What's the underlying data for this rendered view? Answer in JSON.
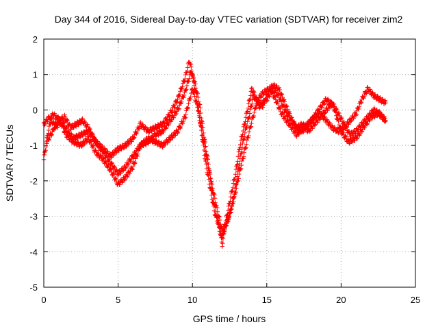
{
  "chart_data": {
    "type": "scatter",
    "title": "Day 344 of 2016, Sidereal Day-to-day VTEC variation (SDTVAR) for receiver zim2",
    "xlabel": "GPS time / hours",
    "ylabel": "SDTVAR / TECUs",
    "xlim": [
      0,
      25
    ],
    "ylim": [
      -5,
      2
    ],
    "xticks": [
      0,
      5,
      10,
      15,
      20,
      25
    ],
    "yticks": [
      -5,
      -4,
      -3,
      -2,
      -1,
      0,
      1,
      2
    ],
    "xtick_labels": [
      "0",
      "5",
      "10",
      "15",
      "20",
      "25"
    ],
    "ytick_labels": [
      "-5",
      "-4",
      "-3",
      "-2",
      "-1",
      "0",
      "1",
      "2"
    ],
    "grid": true,
    "legend": "none",
    "marker": "+",
    "color": "#ff0000",
    "series": [
      {
        "x": [
          0.0,
          0.3,
          0.6,
          1.0,
          1.4,
          1.8,
          2.2,
          2.6,
          3.0,
          3.5,
          4.0,
          4.5,
          5.0,
          5.5,
          6.0,
          6.5,
          7.0,
          7.5,
          8.0,
          8.5,
          9.0,
          9.5,
          9.8,
          10.0,
          10.3,
          10.6,
          10.9,
          11.2,
          11.5,
          11.8,
          12.0,
          12.3,
          12.6,
          12.9,
          13.2,
          13.5,
          13.8,
          14.0,
          14.3,
          14.7,
          15.0,
          15.4,
          15.8,
          16.2,
          16.6,
          17.0,
          17.4,
          17.8,
          18.2,
          18.6,
          19.0,
          19.4,
          19.8,
          20.2,
          20.6,
          21.0,
          21.4,
          21.8,
          22.2,
          22.6,
          23.0
        ],
        "y": [
          -1.4,
          -0.6,
          -0.1,
          -0.3,
          -0.2,
          -0.5,
          -0.4,
          -0.3,
          -0.5,
          -0.9,
          -1.1,
          -1.3,
          -1.1,
          -1.0,
          -0.8,
          -0.4,
          -0.6,
          -0.5,
          -0.4,
          -0.1,
          0.3,
          0.9,
          1.4,
          1.0,
          0.3,
          -0.6,
          -1.5,
          -2.2,
          -2.9,
          -3.3,
          -3.8,
          -3.0,
          -2.4,
          -1.8,
          -1.0,
          -0.4,
          0.2,
          0.6,
          0.3,
          0.1,
          0.4,
          0.7,
          0.6,
          0.2,
          -0.2,
          -0.5,
          -0.6,
          -0.4,
          -0.2,
          -0.1,
          -0.3,
          -0.5,
          -0.6,
          -0.5,
          -0.3,
          -0.1,
          0.3,
          0.6,
          0.4,
          0.3,
          0.2
        ]
      },
      {
        "x": [
          0.0,
          0.4,
          0.8,
          1.2,
          1.6,
          2.0,
          2.5,
          3.0,
          3.5,
          4.0,
          4.5,
          5.0,
          5.5,
          6.0,
          6.5,
          7.0,
          7.5,
          8.0,
          8.5,
          9.0,
          9.5,
          9.9,
          10.2,
          10.5,
          10.8,
          11.1,
          11.4,
          11.7,
          12.0,
          12.3,
          12.6,
          12.9,
          13.2,
          13.5,
          13.8,
          14.1,
          14.5,
          15.0,
          15.4,
          15.8,
          16.2,
          16.6,
          17.0,
          17.4,
          17.8,
          18.2,
          18.6,
          19.0,
          19.4,
          19.8,
          20.2,
          20.6,
          21.0,
          21.4,
          21.8,
          22.2,
          22.6,
          23.0
        ],
        "y": [
          -0.4,
          -0.2,
          -0.5,
          -0.3,
          -0.6,
          -0.8,
          -0.7,
          -0.6,
          -0.9,
          -1.2,
          -1.5,
          -1.8,
          -1.6,
          -1.3,
          -1.0,
          -0.9,
          -0.7,
          -0.6,
          -0.3,
          0.0,
          0.5,
          1.1,
          0.7,
          0.1,
          -0.8,
          -1.6,
          -2.5,
          -3.1,
          -3.6,
          -3.2,
          -2.8,
          -2.2,
          -1.4,
          -0.7,
          -0.2,
          0.4,
          0.1,
          0.3,
          0.6,
          0.4,
          0.0,
          -0.3,
          -0.5,
          -0.4,
          -0.6,
          -0.4,
          -0.2,
          0.0,
          0.2,
          -0.1,
          -0.4,
          -0.7,
          -0.6,
          -0.4,
          -0.2,
          0.0,
          -0.1,
          -0.3
        ]
      },
      {
        "x": [
          0.2,
          0.6,
          1.0,
          1.5,
          2.0,
          2.5,
          3.0,
          3.5,
          4.0,
          4.5,
          5.0,
          5.5,
          6.0,
          6.5,
          7.0,
          7.5,
          8.0,
          8.5,
          9.0,
          9.5,
          10.0,
          10.4,
          10.8,
          11.2,
          11.6,
          12.0,
          12.4,
          12.8,
          13.2,
          13.6,
          14.0,
          14.4,
          14.8,
          15.2,
          15.6,
          16.0,
          16.5,
          17.0,
          17.5,
          18.0,
          18.5,
          19.0,
          19.5,
          20.0,
          20.5,
          21.0,
          21.5,
          22.0,
          22.5,
          23.0
        ],
        "y": [
          -0.9,
          -0.6,
          -0.2,
          -0.7,
          -0.9,
          -1.0,
          -0.8,
          -1.2,
          -1.4,
          -1.7,
          -2.1,
          -1.9,
          -1.6,
          -1.0,
          -0.8,
          -0.9,
          -1.0,
          -0.8,
          -0.6,
          -0.2,
          0.6,
          0.0,
          -1.0,
          -1.9,
          -2.7,
          -3.4,
          -3.1,
          -2.5,
          -1.7,
          -1.0,
          -0.3,
          0.3,
          0.5,
          0.6,
          0.3,
          -0.1,
          -0.4,
          -0.7,
          -0.5,
          -0.3,
          0.0,
          0.3,
          0.1,
          -0.6,
          -0.9,
          -0.8,
          -0.5,
          -0.2,
          -0.1,
          -0.3
        ]
      }
    ]
  }
}
